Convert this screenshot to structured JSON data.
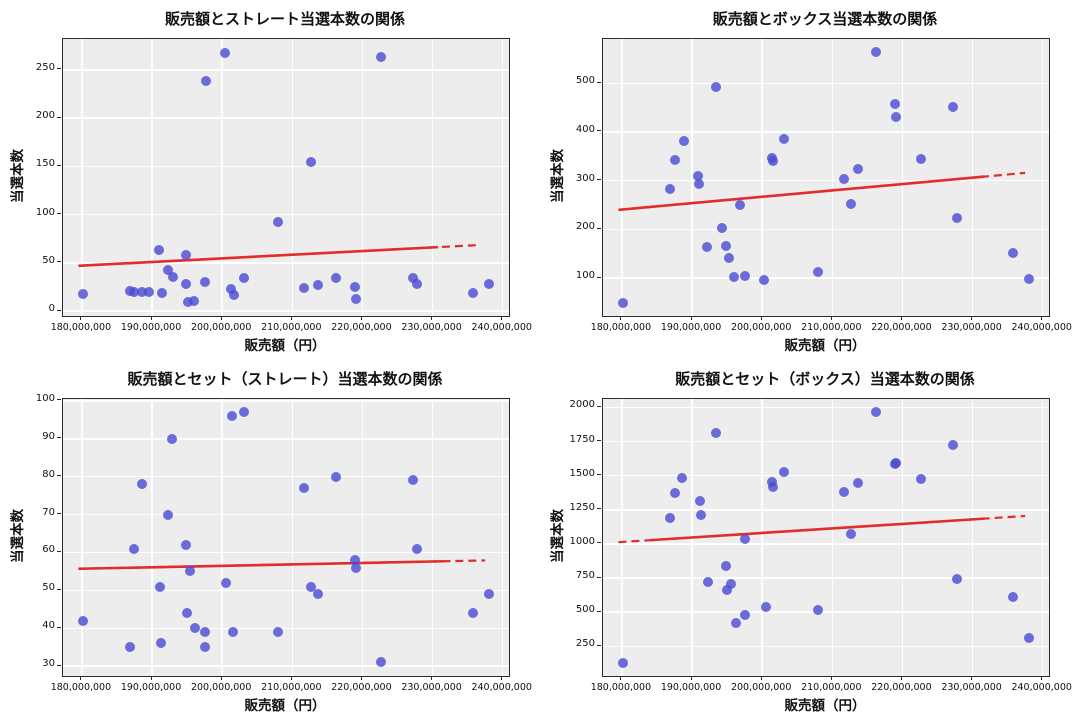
{
  "style": {
    "figure_bg": "#ffffff",
    "plot_bg": "#ededed",
    "grid_color": "#ffffff",
    "spine_color": "#2b2b2b",
    "point_color": "#484ad2",
    "point_opacity": 0.8,
    "trend_color": "#e02d2d",
    "text_color": "#111111"
  },
  "chart_data": [
    {
      "type": "scatter",
      "title": "販売額とストレート当選本数の関係",
      "xlabel": "販売額（円）",
      "ylabel": "当選本数",
      "xlim": [
        177300000,
        240900000
      ],
      "ylim": [
        -5,
        282
      ],
      "grid": true,
      "xticks": [
        {
          "v": 180000000,
          "label": "180,000,000"
        },
        {
          "v": 190000000,
          "label": "190,000,000"
        },
        {
          "v": 200000000,
          "label": "200,000,000"
        },
        {
          "v": 210000000,
          "label": "210,000,000"
        },
        {
          "v": 220000000,
          "label": "220,000,000"
        },
        {
          "v": 230000000,
          "label": "230,000,000"
        },
        {
          "v": 240000000,
          "label": "240,000,000"
        }
      ],
      "yticks": [
        {
          "v": 0,
          "label": "0"
        },
        {
          "v": 50,
          "label": "50"
        },
        {
          "v": 100,
          "label": "100"
        },
        {
          "v": 150,
          "label": "150"
        },
        {
          "v": 200,
          "label": "200"
        },
        {
          "v": 250,
          "label": "250"
        }
      ],
      "points": [
        [
          180100000,
          18
        ],
        [
          186800000,
          21
        ],
        [
          187400000,
          20
        ],
        [
          188600000,
          20
        ],
        [
          189600000,
          20
        ],
        [
          191000000,
          63
        ],
        [
          191400000,
          19
        ],
        [
          192300000,
          43
        ],
        [
          193000000,
          35
        ],
        [
          194800000,
          28
        ],
        [
          194900000,
          58
        ],
        [
          195100000,
          10
        ],
        [
          196000000,
          11
        ],
        [
          197500000,
          30
        ],
        [
          197700000,
          239
        ],
        [
          200400000,
          268
        ],
        [
          201300000,
          23
        ],
        [
          201700000,
          17
        ],
        [
          203100000,
          34
        ],
        [
          208000000,
          92
        ],
        [
          211600000,
          24
        ],
        [
          212600000,
          155
        ],
        [
          213700000,
          27
        ],
        [
          216200000,
          34
        ],
        [
          219000000,
          25
        ],
        [
          219100000,
          13
        ],
        [
          222700000,
          263
        ],
        [
          227200000,
          34
        ],
        [
          227800000,
          28
        ],
        [
          235800000,
          19
        ],
        [
          238000000,
          28
        ]
      ],
      "trend": {
        "x1": 179500000,
        "y1": 47,
        "x2": 236500000,
        "y2": 68.5,
        "dash_start": false,
        "dash_end": true
      }
    },
    {
      "type": "scatter",
      "title": "販売額とボックス当選本数の関係",
      "xlabel": "販売額（円）",
      "ylabel": "当選本数",
      "xlim": [
        177300000,
        240900000
      ],
      "ylim": [
        22,
        591
      ],
      "grid": true,
      "xticks": [
        {
          "v": 180000000,
          "label": "180,000,000"
        },
        {
          "v": 190000000,
          "label": "190,000,000"
        },
        {
          "v": 200000000,
          "label": "200,000,000"
        },
        {
          "v": 210000000,
          "label": "210,000,000"
        },
        {
          "v": 220000000,
          "label": "220,000,000"
        },
        {
          "v": 230000000,
          "label": "230,000,000"
        },
        {
          "v": 240000000,
          "label": "240,000,000"
        }
      ],
      "yticks": [
        {
          "v": 100,
          "label": "100"
        },
        {
          "v": 200,
          "label": "200"
        },
        {
          "v": 300,
          "label": "300"
        },
        {
          "v": 400,
          "label": "400"
        },
        {
          "v": 500,
          "label": "500"
        }
      ],
      "points": [
        [
          180100000,
          48
        ],
        [
          186800000,
          282
        ],
        [
          187500000,
          342
        ],
        [
          188900000,
          381
        ],
        [
          190900000,
          310
        ],
        [
          191000000,
          294
        ],
        [
          192200000,
          163
        ],
        [
          193400000,
          492
        ],
        [
          194200000,
          203
        ],
        [
          194900000,
          166
        ],
        [
          195300000,
          141
        ],
        [
          196000000,
          102
        ],
        [
          196900000,
          250
        ],
        [
          197500000,
          105
        ],
        [
          200300000,
          95
        ],
        [
          201400000,
          347
        ],
        [
          201500000,
          340
        ],
        [
          203100000,
          386
        ],
        [
          208000000,
          113
        ],
        [
          211600000,
          304
        ],
        [
          212600000,
          253
        ],
        [
          213700000,
          323
        ],
        [
          216200000,
          565
        ],
        [
          219000000,
          457
        ],
        [
          219100000,
          430
        ],
        [
          222700000,
          345
        ],
        [
          227200000,
          452
        ],
        [
          227800000,
          223
        ],
        [
          235800000,
          151
        ],
        [
          238000000,
          97
        ]
      ],
      "trend": {
        "x1": 179500000,
        "y1": 240,
        "x2": 237500000,
        "y2": 316,
        "dash_start": false,
        "dash_end": true
      }
    },
    {
      "type": "scatter",
      "title": "販売額とセット（ストレート）当選本数の関係",
      "xlabel": "販売額（円）",
      "ylabel": "当選本数",
      "xlim": [
        177300000,
        240900000
      ],
      "ylim": [
        27.4,
        100.5
      ],
      "grid": true,
      "xticks": [
        {
          "v": 180000000,
          "label": "180,000,000"
        },
        {
          "v": 190000000,
          "label": "190,000,000"
        },
        {
          "v": 200000000,
          "label": "200,000,000"
        },
        {
          "v": 210000000,
          "label": "210,000,000"
        },
        {
          "v": 220000000,
          "label": "220,000,000"
        },
        {
          "v": 230000000,
          "label": "230,000,000"
        },
        {
          "v": 240000000,
          "label": "240,000,000"
        }
      ],
      "yticks": [
        {
          "v": 30,
          "label": "30"
        },
        {
          "v": 40,
          "label": "40"
        },
        {
          "v": 50,
          "label": "50"
        },
        {
          "v": 60,
          "label": "60"
        },
        {
          "v": 70,
          "label": "70"
        },
        {
          "v": 80,
          "label": "80"
        },
        {
          "v": 90,
          "label": "90"
        },
        {
          "v": 100,
          "label": "100"
        }
      ],
      "points": [
        [
          180100000,
          42
        ],
        [
          186800000,
          35
        ],
        [
          187400000,
          61
        ],
        [
          188600000,
          78
        ],
        [
          191100000,
          51
        ],
        [
          191300000,
          36
        ],
        [
          192300000,
          70
        ],
        [
          192900000,
          90
        ],
        [
          194900000,
          62
        ],
        [
          195000000,
          44
        ],
        [
          195400000,
          55
        ],
        [
          196100000,
          40
        ],
        [
          197500000,
          39
        ],
        [
          197600000,
          35
        ],
        [
          200500000,
          52
        ],
        [
          201400000,
          96
        ],
        [
          201500000,
          39
        ],
        [
          203100000,
          97
        ],
        [
          208000000,
          39
        ],
        [
          211600000,
          77
        ],
        [
          212600000,
          51
        ],
        [
          213700000,
          49
        ],
        [
          216200000,
          80
        ],
        [
          219000000,
          58
        ],
        [
          219100000,
          56
        ],
        [
          222700000,
          31
        ],
        [
          227200000,
          79
        ],
        [
          227800000,
          61
        ],
        [
          235800000,
          44
        ],
        [
          238000000,
          49
        ]
      ],
      "trend": {
        "x1": 179500000,
        "y1": 55.7,
        "x2": 237500000,
        "y2": 57.9,
        "dash_start": false,
        "dash_end": true
      }
    },
    {
      "type": "scatter",
      "title": "販売額とセット（ボックス）当選本数の関係",
      "xlabel": "販売額（円）",
      "ylabel": "当選本数",
      "xlim": [
        177300000,
        240900000
      ],
      "ylim": [
        33,
        2062
      ],
      "grid": true,
      "xticks": [
        {
          "v": 180000000,
          "label": "180,000,000"
        },
        {
          "v": 190000000,
          "label": "190,000,000"
        },
        {
          "v": 200000000,
          "label": "200,000,000"
        },
        {
          "v": 210000000,
          "label": "210,000,000"
        },
        {
          "v": 220000000,
          "label": "220,000,000"
        },
        {
          "v": 230000000,
          "label": "230,000,000"
        },
        {
          "v": 240000000,
          "label": "240,000,000"
        }
      ],
      "yticks": [
        {
          "v": 250,
          "label": "250"
        },
        {
          "v": 500,
          "label": "500"
        },
        {
          "v": 750,
          "label": "750"
        },
        {
          "v": 1000,
          "label": "1000"
        },
        {
          "v": 1250,
          "label": "1250"
        },
        {
          "v": 1500,
          "label": "1500"
        },
        {
          "v": 1750,
          "label": "1750"
        },
        {
          "v": 2000,
          "label": "2000"
        }
      ],
      "points": [
        [
          180100000,
          125
        ],
        [
          186800000,
          1190
        ],
        [
          187500000,
          1370
        ],
        [
          188600000,
          1485
        ],
        [
          191100000,
          1315
        ],
        [
          191300000,
          1215
        ],
        [
          192300000,
          720
        ],
        [
          193400000,
          1810
        ],
        [
          194900000,
          840
        ],
        [
          195000000,
          660
        ],
        [
          195500000,
          705
        ],
        [
          196200000,
          420
        ],
        [
          197500000,
          480
        ],
        [
          197600000,
          1040
        ],
        [
          200500000,
          540
        ],
        [
          201400000,
          1455
        ],
        [
          201500000,
          1420
        ],
        [
          203100000,
          1525
        ],
        [
          208000000,
          515
        ],
        [
          211600000,
          1380
        ],
        [
          212600000,
          1070
        ],
        [
          213700000,
          1445
        ],
        [
          216200000,
          1970
        ],
        [
          219000000,
          1585
        ],
        [
          219100000,
          1590
        ],
        [
          222700000,
          1475
        ],
        [
          227200000,
          1725
        ],
        [
          227800000,
          740
        ],
        [
          235800000,
          610
        ],
        [
          238000000,
          315
        ]
      ],
      "trend": {
        "x1": 179500000,
        "y1": 1013,
        "x2": 237500000,
        "y2": 1205,
        "dash_start": true,
        "dash_end": true
      }
    }
  ]
}
